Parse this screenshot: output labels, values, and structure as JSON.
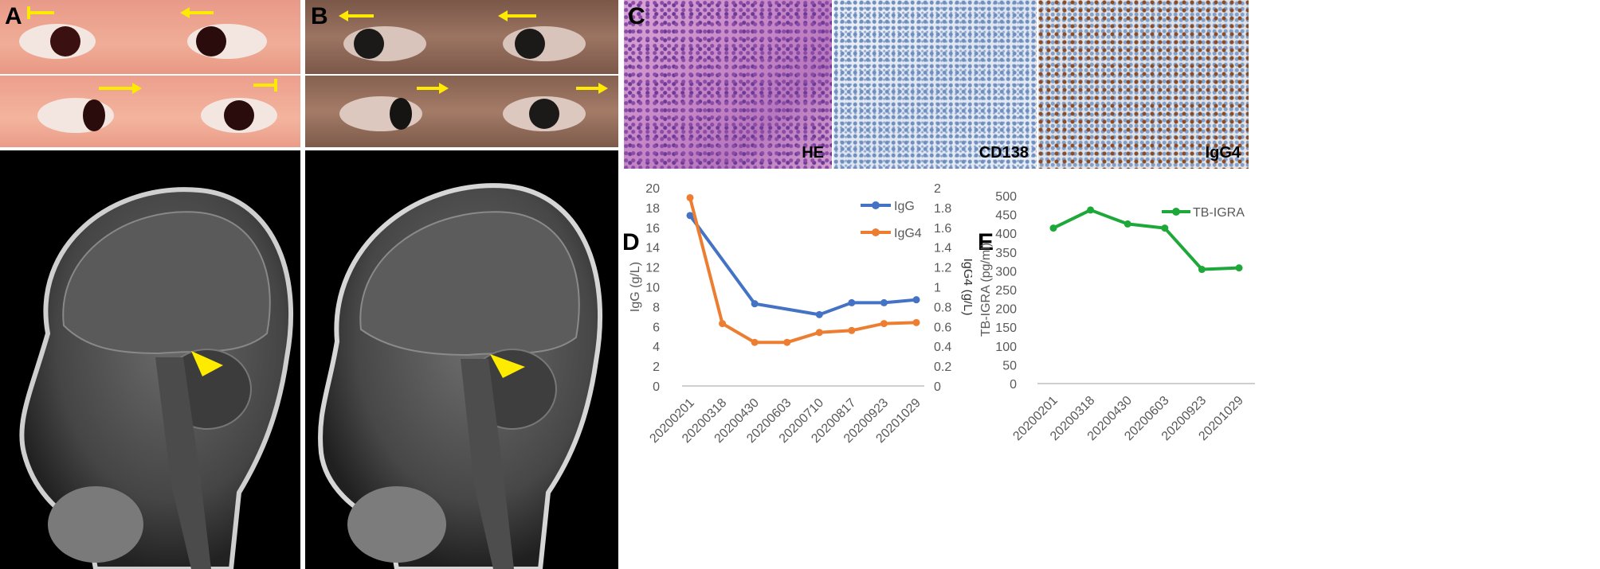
{
  "panels": {
    "A": {
      "label": "A"
    },
    "B": {
      "label": "B"
    },
    "C": {
      "label": "C",
      "stains": [
        "HE",
        "CD138",
        "IgG4"
      ]
    },
    "D": {
      "label": "D"
    },
    "E": {
      "label": "E"
    }
  },
  "chart_data": [
    {
      "type": "line",
      "panel": "D",
      "categories": [
        "20200201",
        "20200318",
        "20200430",
        "20200603",
        "20200710",
        "20200817",
        "20200923",
        "20201029"
      ],
      "series": [
        {
          "name": "IgG",
          "color": "#4472C4",
          "axis": "left",
          "x": [
            "20200201",
            "20200430",
            "20200710",
            "20200817",
            "20200923",
            "20201029"
          ],
          "values": [
            17.2,
            8.3,
            7.2,
            8.4,
            8.4,
            8.7
          ]
        },
        {
          "name": "IgG4",
          "color": "#ED7D31",
          "axis": "right",
          "x": [
            "20200201",
            "20200318",
            "20200430",
            "20200603",
            "20200710",
            "20200817",
            "20200923",
            "20201029"
          ],
          "values": [
            1.9,
            0.63,
            0.44,
            0.44,
            0.54,
            0.56,
            0.63,
            0.64
          ]
        }
      ],
      "ylabel": "IgG (g/L)",
      "y2label": "IgG4 (g/L)",
      "ylim": [
        0,
        20
      ],
      "y2lim": [
        0,
        2
      ],
      "yticks": [
        "0",
        "2",
        "4",
        "6",
        "8",
        "10",
        "12",
        "14",
        "16",
        "18",
        "20"
      ],
      "y2ticks": [
        "0",
        "0.2",
        "0.4",
        "0.6",
        "0.8",
        "1",
        "1.2",
        "1.4",
        "1.6",
        "1.8",
        "2"
      ],
      "legend": "top-right",
      "grid": false
    },
    {
      "type": "line",
      "panel": "E",
      "categories": [
        "20200201",
        "20200318",
        "20200430",
        "20200603",
        "20200923",
        "20201029"
      ],
      "series": [
        {
          "name": "TB-IGRA",
          "color": "#1FA83A",
          "values": [
            414,
            462,
            425,
            414,
            304,
            308
          ]
        }
      ],
      "ylabel": "TB-IGRA (pg/ml)",
      "ylim": [
        0,
        500
      ],
      "yticks": [
        "0",
        "50",
        "100",
        "150",
        "200",
        "250",
        "300",
        "350",
        "400",
        "450",
        "500"
      ],
      "legend": "top-right",
      "grid": false
    }
  ]
}
